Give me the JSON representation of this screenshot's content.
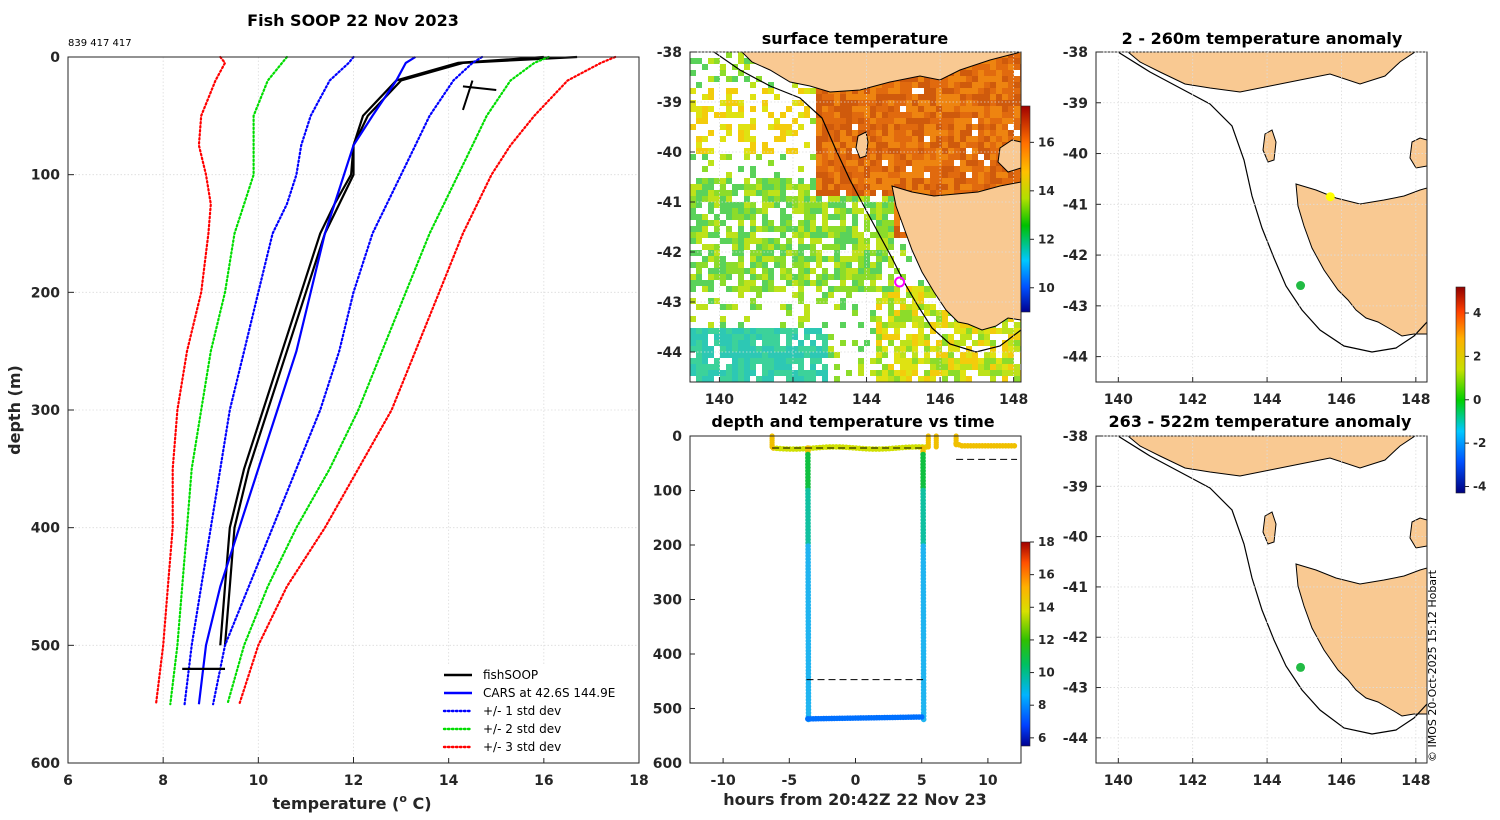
{
  "chart_data": [
    {
      "type": "line",
      "id": "profile",
      "title": "Fish SOOP 22 Nov 2023",
      "subtitle": "839 417 417",
      "xlabel": "temperature (° C)",
      "xlabel_base": "temperature (",
      "xlabel_sup": "o",
      "xlabel_end": " C)",
      "ylabel": "depth (m)",
      "xlim": [
        6,
        18
      ],
      "ylim": [
        600,
        0
      ],
      "xticks": [
        6,
        8,
        10,
        12,
        14,
        16,
        18
      ],
      "yticks": [
        0,
        100,
        200,
        300,
        400,
        500,
        600
      ],
      "depths": [
        0,
        5,
        20,
        50,
        75,
        100,
        125,
        150,
        200,
        250,
        300,
        350,
        400,
        450,
        500,
        550
      ],
      "series": [
        {
          "name": "fishSOOP",
          "color": "#000000",
          "style": "solid",
          "values": [
            16.7,
            14.3,
            13.0,
            12.3,
            12.0,
            12.0,
            11.7,
            11.4,
            11.0,
            10.6,
            10.2,
            9.8,
            9.5,
            9.4,
            9.3,
            null
          ]
        },
        {
          "name": "fishSOOP_b",
          "color": "#000000",
          "style": "solid",
          "values": [
            16.0,
            14.2,
            12.9,
            12.2,
            12.0,
            11.95,
            11.6,
            11.3,
            10.9,
            10.5,
            10.1,
            9.7,
            9.4,
            9.3,
            9.2,
            null
          ]
        },
        {
          "name": "CARS at 42.6S 144.9E",
          "color": "#0000ff",
          "style": "solid",
          "values": [
            13.3,
            13.1,
            12.9,
            12.4,
            12.0,
            11.8,
            11.6,
            11.4,
            11.1,
            10.8,
            10.4,
            10.0,
            9.6,
            9.2,
            8.9,
            8.75
          ]
        },
        {
          "name": "+/- 1 std dev",
          "color": "#0000ff",
          "style": "dotted",
          "values": [
            12.0,
            11.9,
            11.5,
            11.1,
            10.9,
            10.8,
            10.6,
            10.3,
            10.0,
            9.7,
            9.4,
            9.2,
            9.0,
            8.8,
            8.6,
            8.45
          ]
        },
        {
          "name": "+/- 1 std dev (upper)",
          "color": "#0000ff",
          "style": "dotted",
          "values": [
            14.7,
            14.5,
            14.1,
            13.6,
            13.3,
            13.0,
            12.7,
            12.4,
            12.0,
            11.7,
            11.3,
            10.8,
            10.3,
            9.8,
            9.3,
            9.05
          ]
        },
        {
          "name": "+/- 2 std dev",
          "color": "#00dd00",
          "style": "dotted",
          "values": [
            10.6,
            10.5,
            10.2,
            9.9,
            9.9,
            9.9,
            9.7,
            9.5,
            9.3,
            9.0,
            8.8,
            8.6,
            8.5,
            8.4,
            8.3,
            8.15
          ]
        },
        {
          "name": "+/- 2 std dev (upper)",
          "color": "#00dd00",
          "style": "dotted",
          "values": [
            16.1,
            15.8,
            15.3,
            14.8,
            14.5,
            14.2,
            13.9,
            13.6,
            13.1,
            12.6,
            12.1,
            11.5,
            10.8,
            10.2,
            9.7,
            9.35
          ]
        },
        {
          "name": "+/- 3 std dev",
          "color": "#ff0000",
          "style": "dotted",
          "values": [
            9.2,
            9.3,
            9.1,
            8.8,
            8.75,
            8.9,
            9.0,
            8.95,
            8.8,
            8.5,
            8.3,
            8.2,
            8.2,
            8.1,
            8.0,
            7.85
          ]
        },
        {
          "name": "+/- 3 std dev (upper)",
          "color": "#ff0000",
          "style": "dotted",
          "values": [
            17.5,
            17.2,
            16.5,
            15.8,
            15.3,
            14.9,
            14.6,
            14.3,
            13.8,
            13.3,
            12.8,
            12.1,
            11.4,
            10.6,
            10.0,
            9.6
          ]
        }
      ],
      "legend": [
        {
          "label": "fishSOOP",
          "color": "#000000",
          "style": "solid"
        },
        {
          "label": "CARS at 42.6S 144.9E",
          "color": "#0000ff",
          "style": "solid"
        },
        {
          "label": "+/- 1 std dev",
          "color": "#0000ff",
          "style": "dotted"
        },
        {
          "label": "+/- 2 std dev",
          "color": "#00dd00",
          "style": "dotted"
        },
        {
          "label": "+/- 3 std dev",
          "color": "#ff0000",
          "style": "dotted"
        }
      ]
    },
    {
      "type": "heatmap",
      "id": "sst",
      "title": "surface temperature",
      "xlim": [
        139.2,
        148.2
      ],
      "ylim": [
        -44.6,
        -38
      ],
      "xticks": [
        140,
        142,
        144,
        146,
        148
      ],
      "yticks": [
        -38,
        -39,
        -40,
        -41,
        -42,
        -43,
        -44
      ],
      "colorbar": {
        "min": 9,
        "max": 17.5,
        "ticks": [
          10,
          12,
          14,
          16
        ]
      },
      "marker": {
        "lon": 144.9,
        "lat": -42.6,
        "color": "#ff00ff"
      }
    },
    {
      "type": "scatter",
      "id": "timeseries",
      "title": "depth and temperature vs time",
      "xlabel": "hours from 20:42Z 22 Nov 23",
      "ylabel": "",
      "xlim": [
        -12.5,
        12.5
      ],
      "ylim": [
        600,
        0
      ],
      "xticks": [
        -10,
        -5,
        0,
        5,
        10
      ],
      "yticks": [
        0,
        100,
        200,
        300,
        400,
        500,
        600
      ],
      "colorbar": {
        "min": 5.5,
        "max": 18,
        "ticks": [
          6,
          8,
          10,
          12,
          14,
          16,
          18
        ]
      },
      "dashed_lines": [
        {
          "x0": -6.3,
          "x1": 5.2,
          "depth": 22
        },
        {
          "x0": -3.7,
          "x1": 5.1,
          "depth": 447
        },
        {
          "x0": 7.6,
          "x1": 12.2,
          "depth": 43
        }
      ]
    },
    {
      "type": "heatmap",
      "id": "anom1",
      "title": "2 - 260m temperature anomaly",
      "xlim": [
        139.4,
        148.3
      ],
      "ylim": [
        -44.5,
        -38
      ],
      "xticks": [
        140,
        142,
        144,
        146,
        148
      ],
      "yticks": [
        -38,
        -39,
        -40,
        -41,
        -42,
        -43,
        -44
      ],
      "points": [
        {
          "lon": 145.7,
          "lat": -40.85,
          "color": "#ffff00"
        },
        {
          "lon": 144.9,
          "lat": -42.6,
          "color": "#22bb44"
        }
      ],
      "colorbar": {
        "min": -4.3,
        "max": 5.2,
        "ticks": [
          -4,
          -2,
          0,
          2,
          4
        ]
      }
    },
    {
      "type": "heatmap",
      "id": "anom2",
      "title": "263 - 522m temperature anomaly",
      "xlim": [
        139.4,
        148.3
      ],
      "ylim": [
        -44.5,
        -38
      ],
      "xticks": [
        140,
        142,
        144,
        146,
        148
      ],
      "yticks": [
        -38,
        -39,
        -40,
        -41,
        -42,
        -43,
        -44
      ],
      "points": [
        {
          "lon": 144.9,
          "lat": -42.6,
          "color": "#22bb44"
        }
      ]
    }
  ],
  "copyright": "© IMOS 20-Oct-2025 15:12 Hobart"
}
